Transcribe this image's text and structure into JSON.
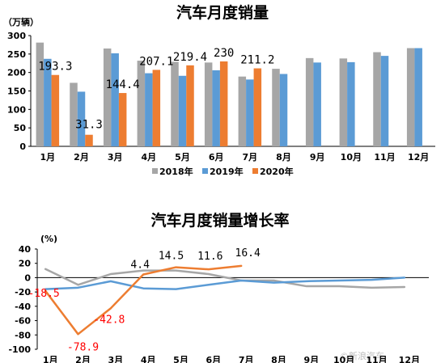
{
  "watermark": "©新浪汽车",
  "chart_data": [
    {
      "type": "bar",
      "title": "汽车月度销量",
      "unit_label": "（万辆）",
      "categories": [
        "1月",
        "2月",
        "3月",
        "4月",
        "5月",
        "6月",
        "7月",
        "8月",
        "9月",
        "10月",
        "11月",
        "12月"
      ],
      "ylim": [
        0,
        300
      ],
      "yticks": [
        0,
        50,
        100,
        150,
        200,
        250,
        300
      ],
      "grid": false,
      "legend_position": "bottom",
      "series": [
        {
          "name": "2018年",
          "color": "#a6a6a6",
          "values": [
            281,
            172,
            265,
            232,
            229,
            227,
            189,
            210,
            239,
            238,
            255,
            266
          ]
        },
        {
          "name": "2019年",
          "color": "#5b9bd5",
          "values": [
            237,
            148,
            252,
            198,
            191,
            206,
            181,
            196,
            227,
            228,
            245,
            266
          ]
        },
        {
          "name": "2020年",
          "color": "#ed7d31",
          "values": [
            193.3,
            31.3,
            144.4,
            207.1,
            219.4,
            230,
            211.2,
            null,
            null,
            null,
            null,
            null
          ]
        }
      ],
      "data_labels": {
        "series": "2020年",
        "labels": [
          "193.3",
          "31.3",
          "144.4",
          "207.1",
          "219.4",
          "230",
          "211.2"
        ]
      }
    },
    {
      "type": "line",
      "title": "汽车月度销量增长率",
      "unit_label": "(%)",
      "categories": [
        "1月",
        "2月",
        "3月",
        "4月",
        "5月",
        "6月",
        "7月",
        "8月",
        "9月",
        "10月",
        "11月",
        "12月"
      ],
      "ylim": [
        -100,
        40
      ],
      "yticks": [
        -100,
        -80,
        -60,
        -40,
        -20,
        0,
        20,
        40
      ],
      "grid": false,
      "series": [
        {
          "name": "2018年",
          "color": "#a6a6a6",
          "values": [
            12,
            -10,
            5,
            10,
            10,
            5,
            -4,
            -4,
            -12,
            -12,
            -14,
            -13
          ]
        },
        {
          "name": "2019年",
          "color": "#5b9bd5",
          "values": [
            -16,
            -14,
            -5,
            -15,
            -16,
            -10,
            -4,
            -7,
            -5,
            -4,
            -3,
            0
          ]
        },
        {
          "name": "2020年",
          "color": "#ed7d31",
          "values": [
            -18.5,
            -78.9,
            -42.8,
            4.4,
            14.5,
            11.6,
            16.4,
            null,
            null,
            null,
            null,
            null
          ]
        }
      ],
      "data_labels": [
        {
          "index": 0,
          "text": "-18.5",
          "color": "#ff0000"
        },
        {
          "index": 1,
          "text": "-78.9",
          "color": "#ff0000"
        },
        {
          "index": 2,
          "text": "-42.8",
          "color": "#ff0000"
        },
        {
          "index": 3,
          "text": "4.4",
          "color": "#000000"
        },
        {
          "index": 4,
          "text": "14.5",
          "color": "#000000"
        },
        {
          "index": 5,
          "text": "11.6",
          "color": "#000000"
        },
        {
          "index": 6,
          "text": "16.4",
          "color": "#000000"
        }
      ]
    }
  ]
}
